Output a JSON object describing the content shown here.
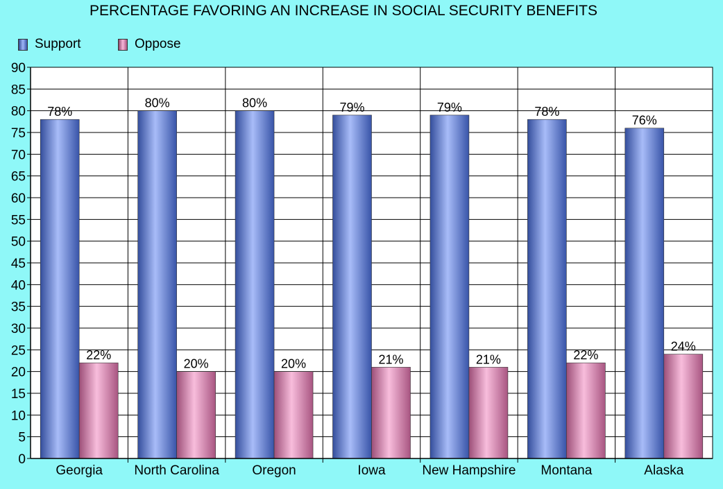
{
  "chart_data": {
    "type": "bar",
    "title": "PERCENTAGE FAVORING AN INCREASE IN SOCIAL SECURITY BENEFITS",
    "xlabel": "",
    "ylabel": "",
    "categories": [
      "Georgia",
      "North Carolina",
      "Oregon",
      "Iowa",
      "New Hampshire",
      "Montana",
      "Alaska"
    ],
    "series": [
      {
        "name": "Support",
        "values": [
          78,
          80,
          80,
          79,
          79,
          78,
          76
        ],
        "labels": [
          "78%",
          "80%",
          "80%",
          "79%",
          "79%",
          "78%",
          "76%"
        ]
      },
      {
        "name": "Oppose",
        "values": [
          22,
          20,
          20,
          21,
          21,
          22,
          24
        ],
        "labels": [
          "22%",
          "20%",
          "20%",
          "21%",
          "21%",
          "22%",
          "24%"
        ]
      }
    ],
    "ylim": [
      0,
      90
    ],
    "yticks": [
      0,
      5,
      10,
      15,
      20,
      25,
      30,
      35,
      40,
      45,
      50,
      55,
      60,
      65,
      70,
      75,
      80,
      85,
      90
    ],
    "grid": true,
    "legend_position": "top-left",
    "colors": {
      "background": "#8ff8f8",
      "plot_background": "#ffffff",
      "gridline": "#000000",
      "support": "#5078f0",
      "oppose": "#f07ab8"
    }
  }
}
